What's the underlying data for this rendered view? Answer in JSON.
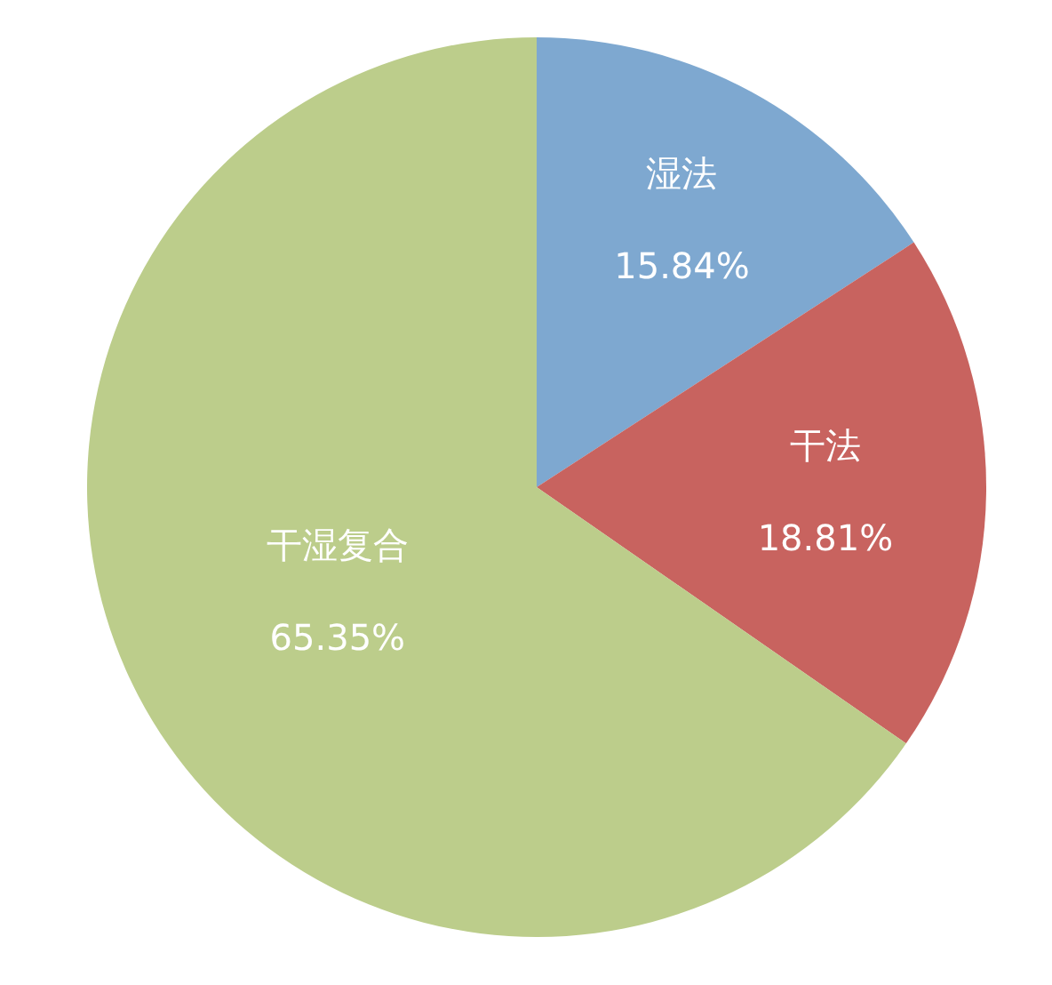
{
  "chart_data": {
    "type": "pie",
    "categories": [
      "湿法",
      "干法",
      "干湿复合"
    ],
    "values": [
      15.84,
      18.81,
      65.35
    ],
    "colors": [
      "#7ea8d0",
      "#c8635f",
      "#bccd8b"
    ],
    "value_labels": [
      "15.84%",
      "18.81%",
      "65.35%"
    ]
  }
}
